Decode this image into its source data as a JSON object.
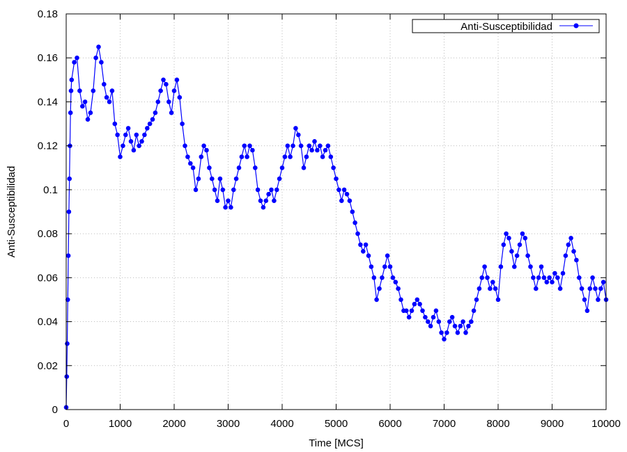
{
  "chart_data": {
    "type": "line",
    "title": "",
    "xlabel": "Time [MCS]",
    "ylabel": "Anti-Susceptibilidad",
    "xlim": [
      0,
      10000
    ],
    "ylim": [
      0,
      0.18
    ],
    "x_ticks": [
      0,
      1000,
      2000,
      3000,
      4000,
      5000,
      6000,
      7000,
      8000,
      9000,
      10000
    ],
    "y_ticks": [
      0,
      0.02,
      0.04,
      0.06,
      0.08,
      0.1,
      0.12,
      0.14,
      0.16,
      0.18
    ],
    "grid": true,
    "legend_position": "top-right",
    "series": [
      {
        "name": "Anti-Susceptibilidad",
        "color": "#0000ff",
        "marker": "circle",
        "x": [
          0,
          10,
          20,
          30,
          40,
          50,
          60,
          70,
          80,
          90,
          100,
          150,
          200,
          250,
          300,
          350,
          400,
          450,
          500,
          550,
          600,
          650,
          700,
          750,
          800,
          850,
          900,
          950,
          1000,
          1050,
          1100,
          1150,
          1200,
          1250,
          1300,
          1350,
          1400,
          1450,
          1500,
          1550,
          1600,
          1650,
          1700,
          1750,
          1800,
          1850,
          1900,
          1950,
          2000,
          2050,
          2100,
          2150,
          2200,
          2250,
          2300,
          2350,
          2400,
          2450,
          2500,
          2550,
          2600,
          2650,
          2700,
          2750,
          2800,
          2850,
          2900,
          2950,
          3000,
          3050,
          3100,
          3150,
          3200,
          3250,
          3300,
          3350,
          3400,
          3450,
          3500,
          3550,
          3600,
          3650,
          3700,
          3750,
          3800,
          3850,
          3900,
          3950,
          4000,
          4050,
          4100,
          4150,
          4200,
          4250,
          4300,
          4350,
          4400,
          4450,
          4500,
          4550,
          4600,
          4650,
          4700,
          4750,
          4800,
          4850,
          4900,
          4950,
          5000,
          5050,
          5100,
          5150,
          5200,
          5250,
          5300,
          5350,
          5400,
          5450,
          5500,
          5550,
          5600,
          5650,
          5700,
          5750,
          5800,
          5850,
          5900,
          5950,
          6000,
          6050,
          6100,
          6150,
          6200,
          6250,
          6300,
          6350,
          6400,
          6450,
          6500,
          6550,
          6600,
          6650,
          6700,
          6750,
          6800,
          6850,
          6900,
          6950,
          7000,
          7050,
          7100,
          7150,
          7200,
          7250,
          7300,
          7350,
          7400,
          7450,
          7500,
          7550,
          7600,
          7650,
          7700,
          7750,
          7800,
          7850,
          7900,
          7950,
          8000,
          8050,
          8100,
          8150,
          8200,
          8250,
          8300,
          8350,
          8400,
          8450,
          8500,
          8550,
          8600,
          8650,
          8700,
          8750,
          8800,
          8850,
          8900,
          8950,
          9000,
          9050,
          9100,
          9150,
          9200,
          9250,
          9300,
          9350,
          9400,
          9450,
          9500,
          9550,
          9600,
          9650,
          9700,
          9750,
          9800,
          9850,
          9900,
          9950,
          10000
        ],
        "y": [
          0.001,
          0.015,
          0.03,
          0.05,
          0.07,
          0.09,
          0.105,
          0.12,
          0.135,
          0.145,
          0.15,
          0.158,
          0.16,
          0.145,
          0.138,
          0.14,
          0.132,
          0.135,
          0.145,
          0.16,
          0.165,
          0.158,
          0.148,
          0.142,
          0.14,
          0.145,
          0.13,
          0.125,
          0.115,
          0.12,
          0.125,
          0.128,
          0.122,
          0.118,
          0.125,
          0.12,
          0.122,
          0.125,
          0.128,
          0.13,
          0.132,
          0.135,
          0.14,
          0.145,
          0.15,
          0.148,
          0.14,
          0.135,
          0.145,
          0.15,
          0.142,
          0.13,
          0.12,
          0.115,
          0.112,
          0.11,
          0.1,
          0.105,
          0.115,
          0.12,
          0.118,
          0.11,
          0.105,
          0.1,
          0.095,
          0.105,
          0.1,
          0.092,
          0.095,
          0.092,
          0.1,
          0.105,
          0.11,
          0.115,
          0.12,
          0.115,
          0.12,
          0.118,
          0.11,
          0.1,
          0.095,
          0.092,
          0.095,
          0.098,
          0.1,
          0.095,
          0.1,
          0.105,
          0.11,
          0.115,
          0.12,
          0.115,
          0.12,
          0.128,
          0.125,
          0.12,
          0.11,
          0.115,
          0.12,
          0.118,
          0.122,
          0.118,
          0.12,
          0.115,
          0.118,
          0.12,
          0.115,
          0.11,
          0.105,
          0.1,
          0.095,
          0.1,
          0.098,
          0.095,
          0.09,
          0.085,
          0.08,
          0.075,
          0.072,
          0.075,
          0.07,
          0.065,
          0.06,
          0.05,
          0.055,
          0.06,
          0.065,
          0.07,
          0.065,
          0.06,
          0.058,
          0.055,
          0.05,
          0.045,
          0.045,
          0.042,
          0.045,
          0.048,
          0.05,
          0.048,
          0.045,
          0.042,
          0.04,
          0.038,
          0.042,
          0.045,
          0.04,
          0.035,
          0.032,
          0.035,
          0.04,
          0.042,
          0.038,
          0.035,
          0.038,
          0.04,
          0.035,
          0.038,
          0.04,
          0.045,
          0.05,
          0.055,
          0.06,
          0.065,
          0.06,
          0.055,
          0.058,
          0.055,
          0.05,
          0.065,
          0.075,
          0.08,
          0.078,
          0.072,
          0.065,
          0.07,
          0.075,
          0.08,
          0.078,
          0.07,
          0.065,
          0.06,
          0.055,
          0.06,
          0.065,
          0.06,
          0.058,
          0.06,
          0.058,
          0.062,
          0.06,
          0.055,
          0.062,
          0.07,
          0.075,
          0.078,
          0.072,
          0.068,
          0.06,
          0.055,
          0.05,
          0.045,
          0.055,
          0.06,
          0.055,
          0.05,
          0.055,
          0.058,
          0.05
        ]
      }
    ]
  }
}
